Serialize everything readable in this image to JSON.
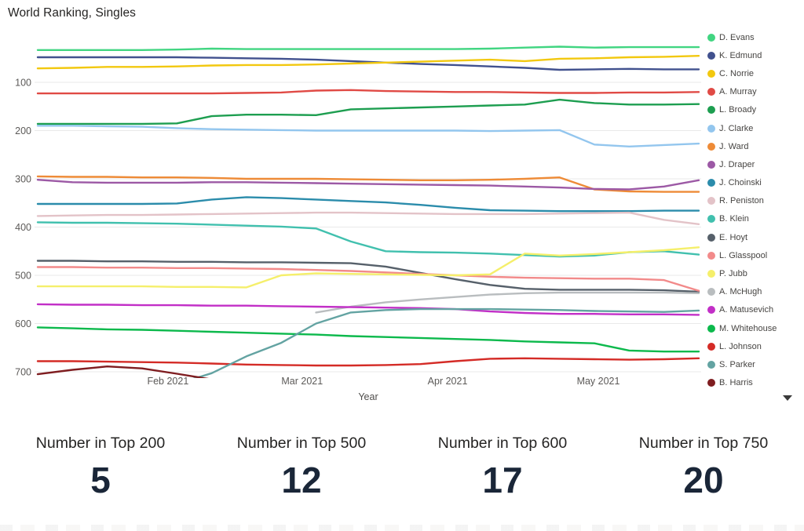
{
  "title": "World Ranking, Singles",
  "chart_data": {
    "type": "line",
    "title": "World Ranking, Singles",
    "xlabel": "Year",
    "ylabel": "",
    "x_unit": "week",
    "grid": true,
    "legend_position": "right",
    "y_axis": {
      "inverted": true,
      "range": [
        0,
        760
      ],
      "ticks": [
        100,
        200,
        300,
        400,
        500,
        600,
        700
      ]
    },
    "x_ticks": [
      {
        "label": "Feb 2021",
        "f": 0.197
      },
      {
        "label": "Mar 2021",
        "f": 0.4
      },
      {
        "label": "Apr 2021",
        "f": 0.62
      },
      {
        "label": "May 2021",
        "f": 0.848
      }
    ],
    "series": [
      {
        "name": "D. Evans",
        "color": "#41d581",
        "values": [
          33,
          33,
          33,
          33,
          32,
          30,
          31,
          31,
          31,
          31,
          31,
          31,
          31,
          30,
          28,
          26,
          28,
          27,
          27,
          27
        ]
      },
      {
        "name": "K. Edmund",
        "color": "#41518e",
        "values": [
          48,
          48,
          48,
          48,
          48,
          49,
          50,
          51,
          53,
          56,
          59,
          62,
          64,
          67,
          70,
          74,
          73,
          72,
          73,
          73
        ]
      },
      {
        "name": "C. Norrie",
        "color": "#f2c80f",
        "values": [
          71,
          70,
          68,
          68,
          67,
          65,
          64,
          64,
          63,
          61,
          59,
          57,
          55,
          53,
          56,
          51,
          50,
          48,
          47,
          45
        ]
      },
      {
        "name": "A. Murray",
        "color": "#e04a45",
        "values": [
          123,
          123,
          123,
          123,
          123,
          123,
          122,
          121,
          117,
          116,
          118,
          119,
          120,
          120,
          121,
          122,
          122,
          121,
          121,
          120
        ]
      },
      {
        "name": "L. Broady",
        "color": "#1d9e50",
        "values": [
          186,
          186,
          186,
          186,
          185,
          170,
          167,
          167,
          168,
          156,
          154,
          152,
          150,
          148,
          146,
          136,
          143,
          146,
          146,
          145
        ]
      },
      {
        "name": "J. Clarke",
        "color": "#93c6ee",
        "values": [
          190,
          190,
          191,
          192,
          195,
          197,
          198,
          199,
          200,
          200,
          200,
          200,
          200,
          201,
          200,
          199,
          229,
          233,
          230,
          227
        ]
      },
      {
        "name": "J. Ward",
        "color": "#ee8b37",
        "values": [
          295,
          296,
          296,
          297,
          297,
          298,
          300,
          300,
          300,
          301,
          302,
          303,
          303,
          302,
          300,
          297,
          322,
          326,
          327,
          327
        ]
      },
      {
        "name": "J. Draper",
        "color": "#9c59a5",
        "values": [
          302,
          307,
          308,
          308,
          308,
          307,
          307,
          308,
          309,
          310,
          311,
          312,
          313,
          314,
          316,
          318,
          321,
          322,
          316,
          303
        ]
      },
      {
        "name": "J. Choinski",
        "color": "#2b8cab",
        "values": [
          352,
          352,
          352,
          352,
          351,
          343,
          338,
          340,
          343,
          346,
          349,
          354,
          360,
          365,
          366,
          367,
          367,
          367,
          366,
          366
        ]
      },
      {
        "name": "R. Peniston",
        "color": "#e3c3c8",
        "values": [
          377,
          376,
          375,
          375,
          374,
          373,
          372,
          371,
          370,
          370,
          371,
          372,
          373,
          373,
          373,
          372,
          371,
          370,
          385,
          394
        ]
      },
      {
        "name": "B. Klein",
        "color": "#41c0ae",
        "values": [
          390,
          391,
          391,
          392,
          393,
          395,
          397,
          399,
          403,
          430,
          450,
          452,
          453,
          455,
          458,
          461,
          459,
          452,
          450,
          457
        ]
      },
      {
        "name": "E. Hoyt",
        "color": "#56606a",
        "values": [
          470,
          470,
          471,
          471,
          472,
          472,
          473,
          473,
          474,
          475,
          482,
          495,
          508,
          520,
          528,
          530,
          530,
          530,
          531,
          534
        ]
      },
      {
        "name": "L. Glasspool",
        "color": "#f28a8a",
        "values": [
          483,
          483,
          484,
          484,
          485,
          485,
          486,
          487,
          489,
          491,
          494,
          497,
          500,
          503,
          505,
          506,
          507,
          507,
          510,
          532
        ]
      },
      {
        "name": "P. Jubb",
        "color": "#f5ef6b",
        "values": [
          523,
          523,
          523,
          523,
          524,
          524,
          525,
          500,
          496,
          497,
          498,
          499,
          500,
          498,
          455,
          459,
          456,
          452,
          448,
          442
        ]
      },
      {
        "name": "A. McHugh",
        "color": "#b9bdbf",
        "values": [
          null,
          null,
          null,
          null,
          null,
          null,
          null,
          null,
          577,
          565,
          556,
          550,
          545,
          540,
          537,
          536,
          536,
          536,
          536,
          537
        ]
      },
      {
        "name": "A. Matusevich",
        "color": "#c22fc7",
        "values": [
          560,
          561,
          561,
          562,
          562,
          563,
          563,
          564,
          565,
          566,
          567,
          568,
          570,
          575,
          578,
          580,
          580,
          581,
          581,
          582
        ]
      },
      {
        "name": "M. Whitehouse",
        "color": "#0cb94c",
        "values": [
          608,
          610,
          612,
          613,
          615,
          617,
          619,
          621,
          623,
          626,
          628,
          630,
          632,
          634,
          637,
          639,
          641,
          656,
          658,
          658
        ]
      },
      {
        "name": "L. Johnson",
        "color": "#d42b26",
        "values": [
          678,
          678,
          679,
          680,
          681,
          683,
          685,
          686,
          687,
          687,
          686,
          684,
          678,
          673,
          672,
          673,
          674,
          675,
          674,
          672
        ]
      },
      {
        "name": "S. Parker",
        "color": "#63a3a2",
        "values": [
          null,
          null,
          null,
          null,
          725,
          703,
          668,
          640,
          600,
          577,
          572,
          570,
          570,
          570,
          571,
          572,
          574,
          575,
          576,
          573
        ]
      },
      {
        "name": "B. Harris",
        "color": "#7f1d20",
        "values": [
          705,
          696,
          689,
          693,
          704,
          716,
          null,
          null,
          null,
          null,
          null,
          null,
          null,
          null,
          null,
          null,
          null,
          null,
          null,
          null
        ]
      }
    ]
  },
  "kpis": [
    {
      "label": "Number in Top 200",
      "value": "5"
    },
    {
      "label": "Number in Top 500",
      "value": "12"
    },
    {
      "label": "Number in Top 600",
      "value": "17"
    },
    {
      "label": "Number in Top 750",
      "value": "20"
    }
  ]
}
